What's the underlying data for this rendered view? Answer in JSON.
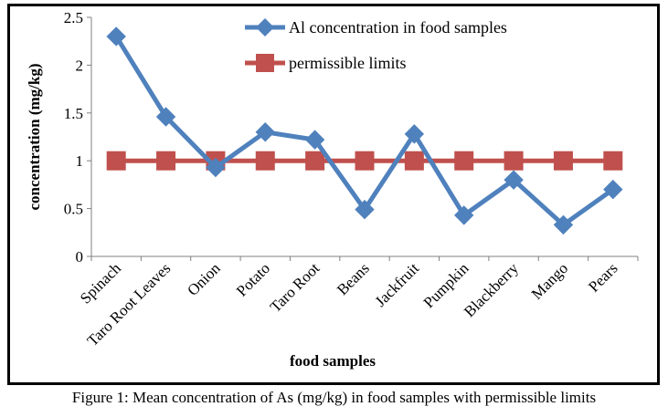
{
  "chart_data": {
    "type": "line",
    "categories": [
      "Spinach",
      "Taro Root Leaves",
      "Onion",
      "Potato",
      "Taro Root",
      "Beans",
      "Jackfruit",
      "Pumpkin",
      "Blackberry",
      "Mango",
      "Pears"
    ],
    "series": [
      {
        "name": "Al concentration in food samples",
        "values": [
          2.3,
          1.46,
          0.93,
          1.3,
          1.22,
          0.49,
          1.28,
          0.43,
          0.8,
          0.33,
          0.7
        ],
        "color": "#4f81bd",
        "marker": "diamond"
      },
      {
        "name": "permissible limits",
        "values": [
          1,
          1,
          1,
          1,
          1,
          1,
          1,
          1,
          1,
          1,
          1
        ],
        "color": "#c0504d",
        "marker": "square"
      }
    ],
    "xlabel": "food samples",
    "ylabel": "concentration (mg/kg)",
    "ylim": [
      0,
      2.5
    ],
    "yticks": [
      "0",
      "0.5",
      "1",
      "1.5",
      "2",
      "2.5"
    ],
    "grid": false,
    "legend": "top-right"
  },
  "caption": "Figure 1: Mean concentration of As (mg/kg) in food samples with permissible limits"
}
